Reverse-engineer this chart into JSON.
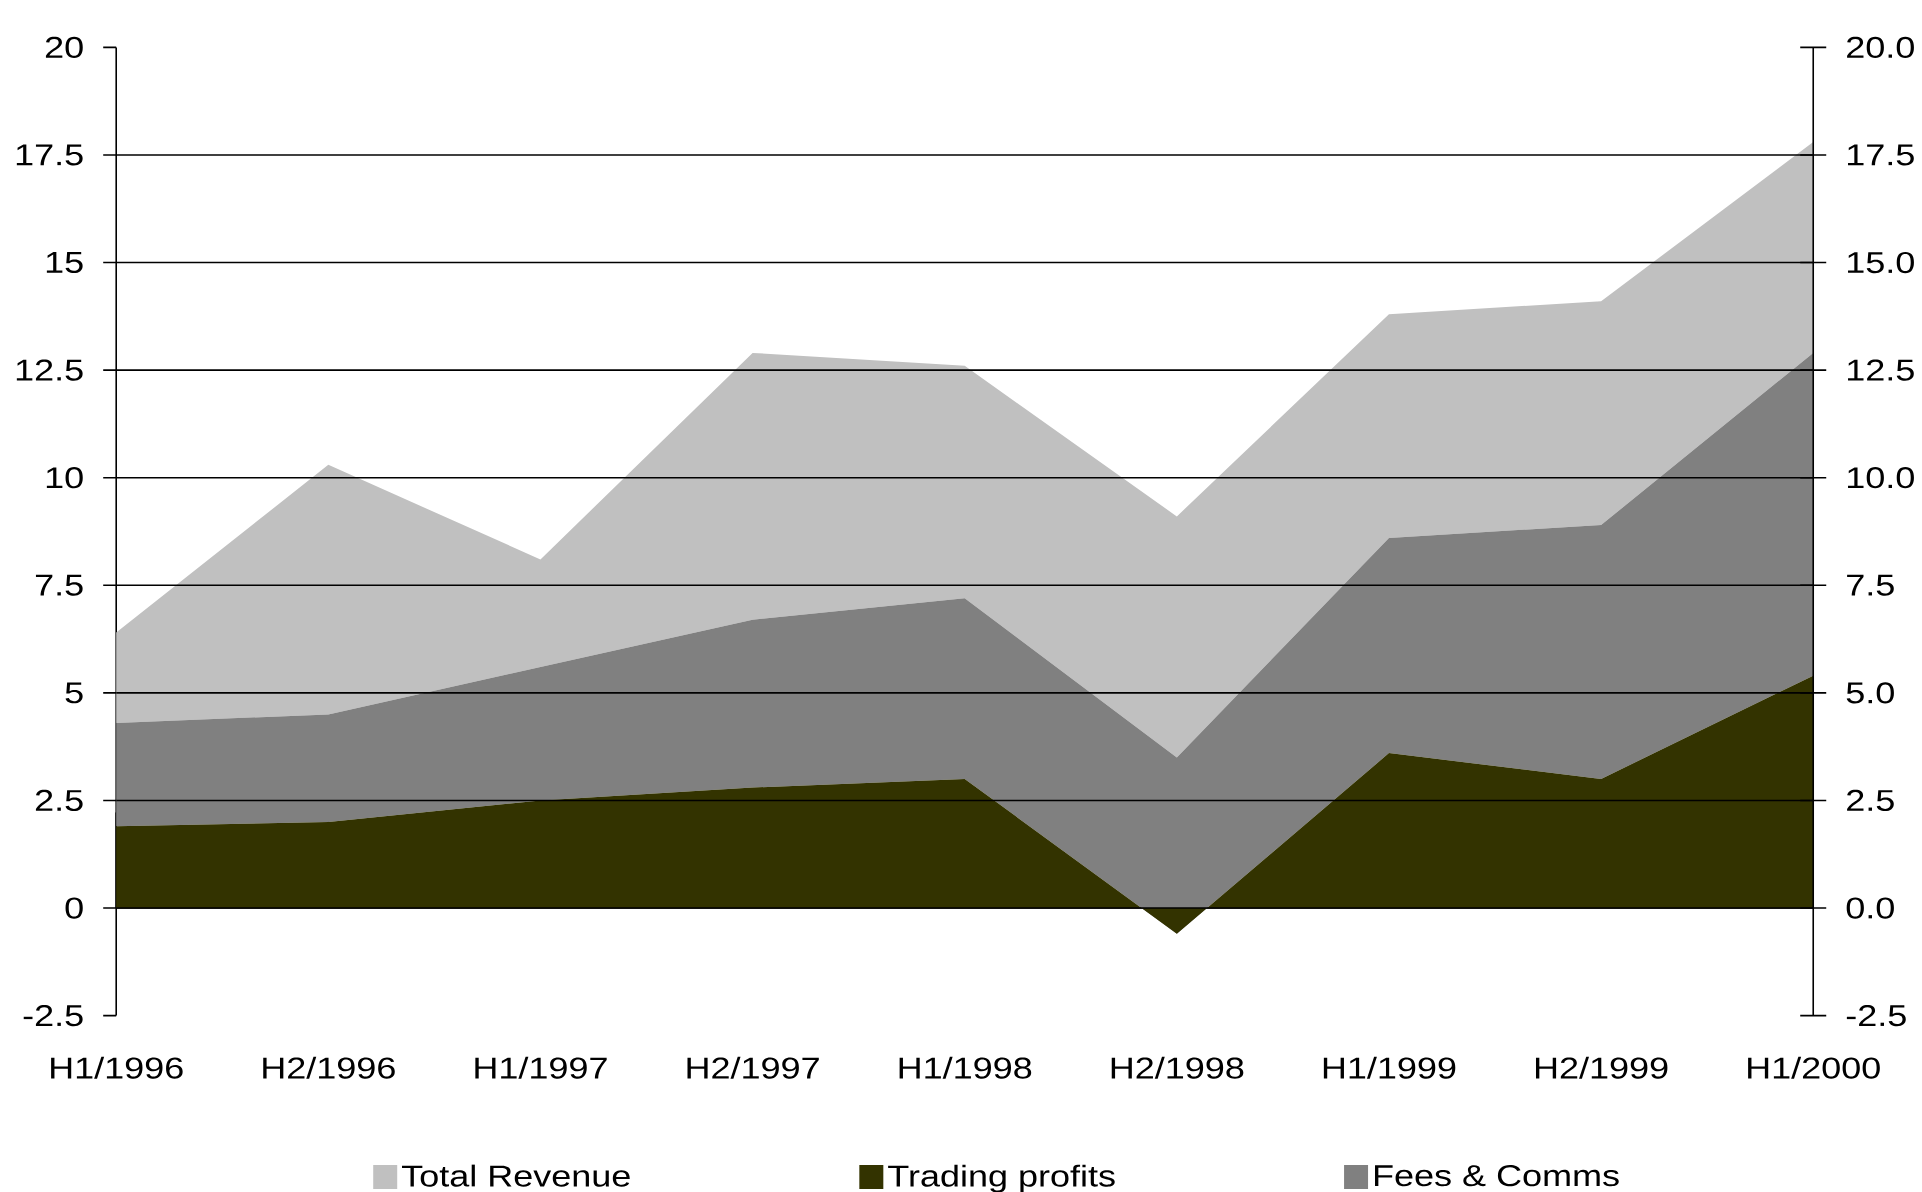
{
  "chart_data": {
    "type": "area",
    "stacked": true,
    "categories": [
      "H1/1996",
      "H2/1996",
      "H1/1997",
      "H2/1997",
      "H1/1998",
      "H2/1998",
      "H1/1999",
      "H2/1999",
      "H1/2000"
    ],
    "series": [
      {
        "name": "Trading profits",
        "color": "#333300",
        "values": [
          1.9,
          2.0,
          2.5,
          2.8,
          3.0,
          -0.6,
          3.6,
          3.0,
          5.4
        ]
      },
      {
        "name": "Fees & Comms",
        "color": "#808080",
        "values": [
          2.4,
          2.5,
          3.1,
          3.9,
          4.2,
          4.1,
          5.0,
          5.9,
          7.5
        ]
      },
      {
        "name": "Total Revenue",
        "color": "#c0c0c0",
        "values": [
          2.1,
          5.8,
          2.5,
          6.2,
          5.4,
          5.6,
          5.2,
          5.2,
          4.9
        ]
      }
    ],
    "ylim": [
      -2.5,
      20
    ],
    "yticks": [
      -2.5,
      0,
      2.5,
      5,
      7.5,
      10,
      12.5,
      15,
      17.5,
      20
    ],
    "y2lim": [
      -2.5,
      20
    ],
    "y2ticks": [
      -2.5,
      {
        "value": 0,
        "label": "0.0"
      },
      2.5,
      {
        "value": 5,
        "label": "5.0"
      },
      7.5,
      {
        "value": 10,
        "label": "10.0"
      },
      12.5,
      {
        "value": 15,
        "label": "15.0"
      },
      17.5,
      {
        "value": 20,
        "label": "20.0"
      }
    ],
    "grid": "y",
    "legend": "bottom"
  }
}
